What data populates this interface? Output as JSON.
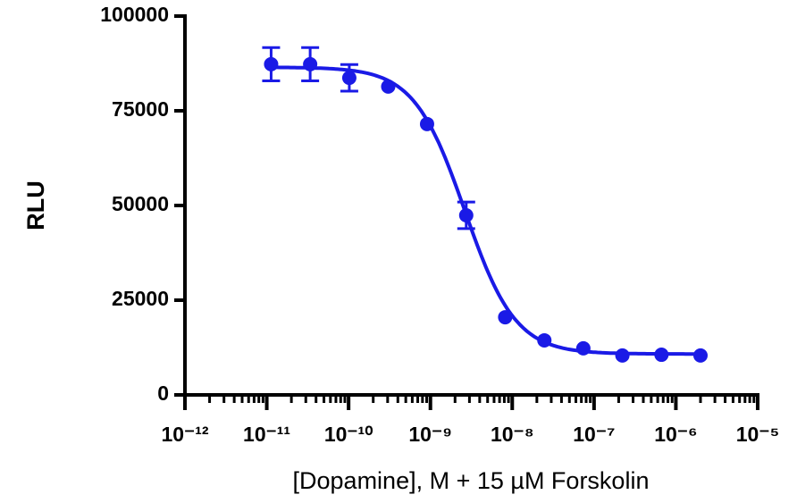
{
  "chart_data": {
    "type": "scatter",
    "ylabel": "RLU",
    "xlabel": "[Dopamine], M + 15 µM Forskolin",
    "log_x": true,
    "color": "#1a1ae6",
    "x": [
      1.13e-11,
      3.39e-11,
      1.02e-10,
      3.05e-10,
      9.1e-10,
      2.74e-09,
      8.2e-09,
      2.47e-08,
      7.4e-08,
      2.22e-07,
      6.67e-07,
      2e-06
    ],
    "values": [
      87300,
      87300,
      83700,
      81400,
      71500,
      47400,
      20500,
      14400,
      12300,
      10400,
      10600,
      10400
    ],
    "errors": [
      4400,
      4400,
      3500,
      null,
      null,
      3500,
      null,
      null,
      null,
      null,
      null,
      null
    ],
    "fit": {
      "top": 86500,
      "bottom": 10800,
      "logec50": -8.58,
      "hill": 1.4
    },
    "xlim": [
      1e-12,
      1e-05
    ],
    "xticks": [
      {
        "value": 1e-12,
        "label": "10⁻¹²"
      },
      {
        "value": 1e-11,
        "label": "10⁻¹¹"
      },
      {
        "value": 1e-10,
        "label": "10⁻¹⁰"
      },
      {
        "value": 1e-09,
        "label": "10⁻⁹"
      },
      {
        "value": 1e-08,
        "label": "10⁻⁸"
      },
      {
        "value": 1e-07,
        "label": "10⁻⁷"
      },
      {
        "value": 1e-06,
        "label": "10⁻⁶"
      },
      {
        "value": 1e-05,
        "label": "10⁻⁵"
      }
    ],
    "ylim": [
      0,
      100000
    ],
    "yticks": [
      0,
      25000,
      50000,
      75000,
      100000
    ]
  }
}
